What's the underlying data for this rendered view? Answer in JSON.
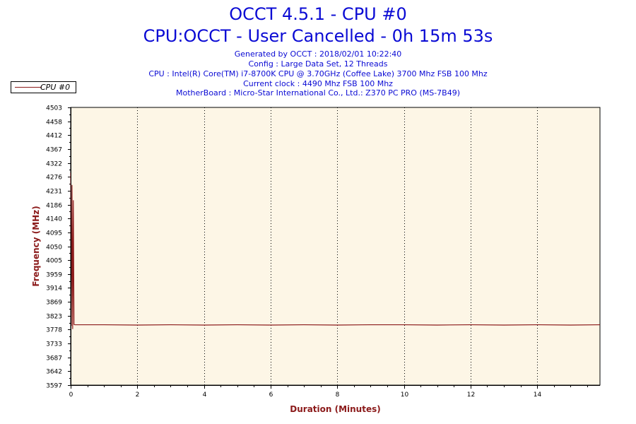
{
  "header": {
    "title": "OCCT 4.5.1 - CPU #0",
    "subtitle": "CPU:OCCT - User Cancelled - 0h 15m 53s",
    "generated": "Generated by OCCT : 2018/02/01 10:22:40",
    "config": "Config : Large Data Set, 12 Threads",
    "cpu": "CPU : Intel(R) Core(TM) i7-8700K CPU @ 3.70GHz (Coffee Lake) 3700 Mhz FSB 100 Mhz",
    "clock": "Current clock : 4490 Mhz FSB 100 Mhz",
    "motherboard": "MotherBoard : Micro-Star International Co., Ltd.: Z370 PC PRO (MS-7B49)"
  },
  "colors": {
    "plot_background": "#fdf6e6",
    "series": "#8b1a1a",
    "axis_title": "#8b1a1a",
    "header_text": "#0a0ad4"
  },
  "chart_data": {
    "type": "line",
    "xlabel": "Duration (Minutes)",
    "ylabel": "Frequency (MHz)",
    "xlim": [
      0,
      15.883
    ],
    "ylim": [
      3597,
      4503
    ],
    "x_ticks": [
      "0",
      "2",
      "4",
      "6",
      "8",
      "10",
      "12",
      "14"
    ],
    "y_ticks": [
      "3597",
      "3642",
      "3687",
      "3733",
      "3778",
      "3823",
      "3869",
      "3914",
      "3959",
      "4005",
      "4050",
      "4095",
      "4140",
      "4186",
      "4231",
      "4276",
      "4322",
      "4367",
      "4412",
      "4458",
      "4503"
    ],
    "grid": "vertical dotted",
    "legend_position": "top-left",
    "series": [
      {
        "name": "CPU #0",
        "x": [
          0,
          0.02,
          0.04,
          0.06,
          0.08,
          0.1,
          0.12,
          0.5,
          1,
          2,
          3,
          4,
          5,
          6,
          7,
          8,
          9,
          10,
          11,
          12,
          13,
          14,
          15,
          15.883
        ],
        "y": [
          4290,
          3790,
          4250,
          3780,
          4200,
          3795,
          3794,
          3794,
          3794,
          3793,
          3794,
          3793,
          3794,
          3793,
          3794,
          3793,
          3794,
          3794,
          3793,
          3794,
          3793,
          3794,
          3793,
          3794
        ]
      }
    ]
  }
}
